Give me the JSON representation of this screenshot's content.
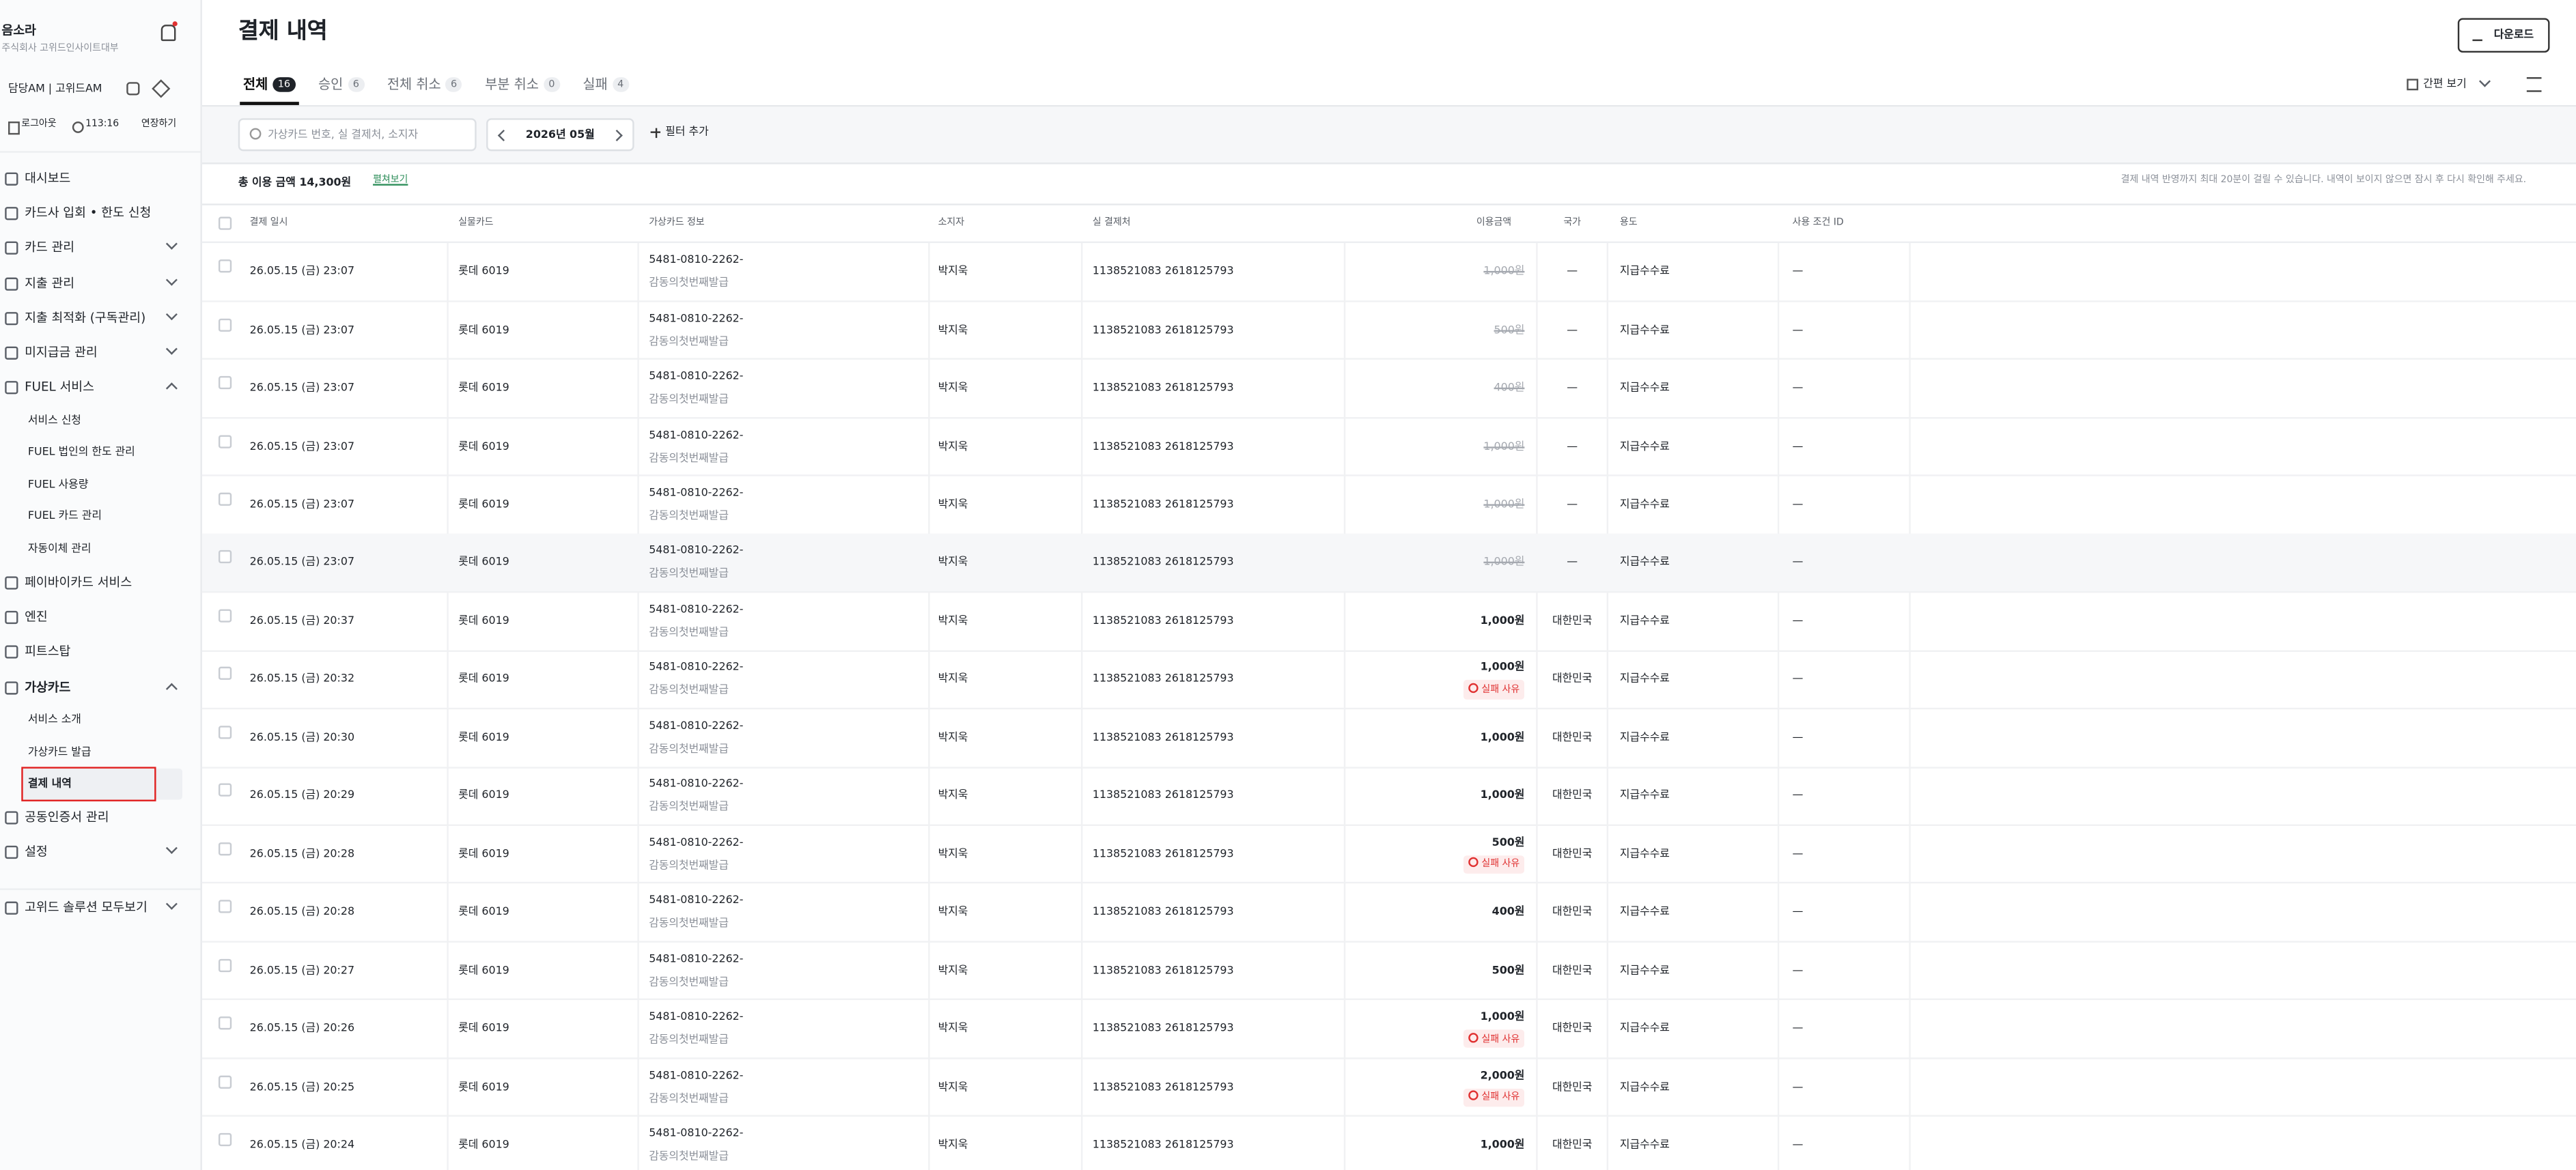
{
  "sidebar": {
    "user_name": "음소라",
    "company": "주식회사 고위드인사이트대부",
    "manager": "담당AM  |  고위드AM",
    "logout": "로그아웃",
    "timer": "113:16",
    "extend": "연장하기",
    "menu": [
      {
        "label": "대시보드"
      },
      {
        "label": "카드사 입회 • 한도 신청"
      },
      {
        "label": "카드 관리",
        "expand": "down"
      },
      {
        "label": "지출 관리",
        "expand": "down"
      },
      {
        "label": "지출 최적화 (구독관리)",
        "expand": "down"
      },
      {
        "label": "미지급금 관리",
        "expand": "down"
      },
      {
        "label": "FUEL 서비스",
        "expand": "up",
        "children": [
          {
            "label": "서비스 신청"
          },
          {
            "label": "FUEL 법인의 한도 관리"
          },
          {
            "label": "FUEL 사용량"
          },
          {
            "label": "FUEL 카드 관리"
          },
          {
            "label": "자동이체 관리"
          }
        ]
      },
      {
        "label": "페이바이카드 서비스"
      },
      {
        "label": "엔진"
      },
      {
        "label": "피트스탑"
      },
      {
        "label": "가상카드",
        "expand": "up",
        "bold": true,
        "children": [
          {
            "label": "서비스 소개"
          },
          {
            "label": "가상카드 발급"
          },
          {
            "label": "결제 내역",
            "active": true
          }
        ]
      },
      {
        "label": "공동인증서 관리"
      },
      {
        "label": "설정",
        "expand": "down"
      },
      {
        "label": "고위드 솔루션 모두보기",
        "expand": "down"
      }
    ]
  },
  "header": {
    "title": "결제 내역",
    "download": "다운로드",
    "view_mode": "간편 보기",
    "tabs": [
      {
        "label": "전체",
        "count": 16,
        "active": true
      },
      {
        "label": "승인",
        "count": 6
      },
      {
        "label": "전체 취소",
        "count": 6
      },
      {
        "label": "부분 취소",
        "count": 0
      },
      {
        "label": "실패",
        "count": 4
      }
    ]
  },
  "filter": {
    "search_placeholder": "가상카드 번호, 실 결제처, 소지자",
    "month": "2026년 05월",
    "add_filter": "필터 추가"
  },
  "summary": {
    "total": "총 이용 금액 14,300원",
    "expand": "펼쳐보기",
    "notice": "결제 내역 반영까지 최대 20분이 걸릴 수 있습니다. 내역이 보이지 않으면 잠시 후 다시 확인해 주세요."
  },
  "table": {
    "columns": [
      "결제 일시",
      "실물카드",
      "가상카드 정보",
      "소지자",
      "실 결제처",
      "이용금액",
      "국가",
      "용도",
      "사용 조건 ID"
    ],
    "rows": [
      {
        "datetime": "26.05.15 (금) 23:07",
        "card": "롯데 6019",
        "vcard_number": "5481-0810-2262-",
        "vcard_name": "감동의첫번째발급",
        "holder": "박지욱",
        "merchant": "1138521083 2618125793",
        "amount": "1,000원",
        "canceled": true,
        "country": "—",
        "purpose": "지급수수료",
        "condition_id": "—"
      },
      {
        "datetime": "26.05.15 (금) 23:07",
        "card": "롯데 6019",
        "vcard_number": "5481-0810-2262-",
        "vcard_name": "감동의첫번째발급",
        "holder": "박지욱",
        "merchant": "1138521083 2618125793",
        "amount": "500원",
        "canceled": true,
        "country": "—",
        "purpose": "지급수수료",
        "condition_id": "—"
      },
      {
        "datetime": "26.05.15 (금) 23:07",
        "card": "롯데 6019",
        "vcard_number": "5481-0810-2262-",
        "vcard_name": "감동의첫번째발급",
        "holder": "박지욱",
        "merchant": "1138521083 2618125793",
        "amount": "400원",
        "canceled": true,
        "country": "—",
        "purpose": "지급수수료",
        "condition_id": "—"
      },
      {
        "datetime": "26.05.15 (금) 23:07",
        "card": "롯데 6019",
        "vcard_number": "5481-0810-2262-",
        "vcard_name": "감동의첫번째발급",
        "holder": "박지욱",
        "merchant": "1138521083 2618125793",
        "amount": "1,000원",
        "canceled": true,
        "country": "—",
        "purpose": "지급수수료",
        "condition_id": "—"
      },
      {
        "datetime": "26.05.15 (금) 23:07",
        "card": "롯데 6019",
        "vcard_number": "5481-0810-2262-",
        "vcard_name": "감동의첫번째발급",
        "holder": "박지욱",
        "merchant": "1138521083 2618125793",
        "amount": "1,000원",
        "canceled": true,
        "country": "—",
        "purpose": "지급수수료",
        "condition_id": "—"
      },
      {
        "datetime": "26.05.15 (금) 23:07",
        "card": "롯데 6019",
        "vcard_number": "5481-0810-2262-",
        "vcard_name": "감동의첫번째발급",
        "holder": "박지욱",
        "merchant": "1138521083 2618125793",
        "amount": "1,000원",
        "canceled": true,
        "highlighted": true,
        "country": "—",
        "purpose": "지급수수료",
        "condition_id": "—"
      },
      {
        "datetime": "26.05.15 (금) 20:37",
        "card": "롯데 6019",
        "vcard_number": "5481-0810-2262-",
        "vcard_name": "감동의첫번째발급",
        "holder": "박지욱",
        "merchant": "1138521083 2618125793",
        "amount": "1,000원",
        "country": "대한민국",
        "purpose": "지급수수료",
        "condition_id": "—"
      },
      {
        "datetime": "26.05.15 (금) 20:32",
        "card": "롯데 6019",
        "vcard_number": "5481-0810-2262-",
        "vcard_name": "감동의첫번째발급",
        "holder": "박지욱",
        "merchant": "1138521083 2618125793",
        "amount": "1,000원",
        "fail_reason": "실패 사유",
        "country": "대한민국",
        "purpose": "지급수수료",
        "condition_id": "—"
      },
      {
        "datetime": "26.05.15 (금) 20:30",
        "card": "롯데 6019",
        "vcard_number": "5481-0810-2262-",
        "vcard_name": "감동의첫번째발급",
        "holder": "박지욱",
        "merchant": "1138521083 2618125793",
        "amount": "1,000원",
        "country": "대한민국",
        "purpose": "지급수수료",
        "condition_id": "—"
      },
      {
        "datetime": "26.05.15 (금) 20:29",
        "card": "롯데 6019",
        "vcard_number": "5481-0810-2262-",
        "vcard_name": "감동의첫번째발급",
        "holder": "박지욱",
        "merchant": "1138521083 2618125793",
        "amount": "1,000원",
        "country": "대한민국",
        "purpose": "지급수수료",
        "condition_id": "—"
      },
      {
        "datetime": "26.05.15 (금) 20:28",
        "card": "롯데 6019",
        "vcard_number": "5481-0810-2262-",
        "vcard_name": "감동의첫번째발급",
        "holder": "박지욱",
        "merchant": "1138521083 2618125793",
        "amount": "500원",
        "fail_reason": "실패 사유",
        "country": "대한민국",
        "purpose": "지급수수료",
        "condition_id": "—"
      },
      {
        "datetime": "26.05.15 (금) 20:28",
        "card": "롯데 6019",
        "vcard_number": "5481-0810-2262-",
        "vcard_name": "감동의첫번째발급",
        "holder": "박지욱",
        "merchant": "1138521083 2618125793",
        "amount": "400원",
        "country": "대한민국",
        "purpose": "지급수수료",
        "condition_id": "—"
      },
      {
        "datetime": "26.05.15 (금) 20:27",
        "card": "롯데 6019",
        "vcard_number": "5481-0810-2262-",
        "vcard_name": "감동의첫번째발급",
        "holder": "박지욱",
        "merchant": "1138521083 2618125793",
        "amount": "500원",
        "country": "대한민국",
        "purpose": "지급수수료",
        "condition_id": "—"
      },
      {
        "datetime": "26.05.15 (금) 20:26",
        "card": "롯데 6019",
        "vcard_number": "5481-0810-2262-",
        "vcard_name": "감동의첫번째발급",
        "holder": "박지욱",
        "merchant": "1138521083 2618125793",
        "amount": "1,000원",
        "fail_reason": "실패 사유",
        "country": "대한민국",
        "purpose": "지급수수료",
        "condition_id": "—"
      },
      {
        "datetime": "26.05.15 (금) 20:25",
        "card": "롯데 6019",
        "vcard_number": "5481-0810-2262-",
        "vcard_name": "감동의첫번째발급",
        "holder": "박지욱",
        "merchant": "1138521083 2618125793",
        "amount": "2,000원",
        "fail_reason": "실패 사유",
        "country": "대한민국",
        "purpose": "지급수수료",
        "condition_id": "—"
      },
      {
        "datetime": "26.05.15 (금) 20:24",
        "card": "롯데 6019",
        "vcard_number": "5481-0810-2262-",
        "vcard_name": "감동의첫번째발급",
        "holder": "박지욱",
        "merchant": "1138521083 2618125793",
        "amount": "1,000원",
        "country": "대한민국",
        "purpose": "지급수수료",
        "condition_id": "—"
      }
    ]
  }
}
